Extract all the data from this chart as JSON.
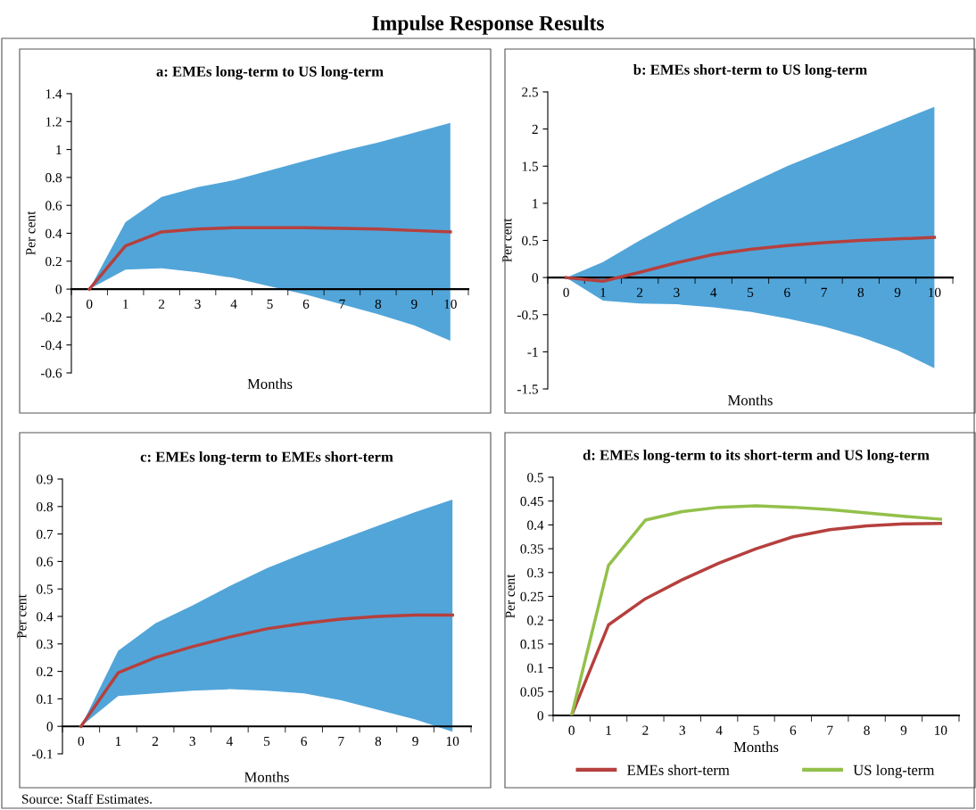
{
  "chart_data": [
    {
      "type": "line",
      "title": "a: EMEs long-term to US long-term",
      "xlabel": "Months",
      "ylabel": "Per cent",
      "annotations": [
        "Impulse Response Results"
      ],
      "categories": [
        "0",
        "1",
        "2",
        "3",
        "4",
        "5",
        "6",
        "7",
        "8",
        "9",
        "10"
      ],
      "series": [
        {
          "color": "#b5403e",
          "values": [
            0,
            0.31,
            0.41,
            0.43,
            0.44,
            0.44,
            0.44,
            0.435,
            0.43,
            0.42,
            0.41
          ],
          "lower": [
            0,
            0.14,
            0.15,
            0.12,
            0.08,
            0.02,
            -0.04,
            -0.11,
            -0.18,
            -0.26,
            -0.37
          ],
          "upper": [
            0,
            0.48,
            0.66,
            0.73,
            0.78,
            0.85,
            0.92,
            0.99,
            1.05,
            1.12,
            1.19
          ]
        }
      ],
      "ylim": [
        -0.6,
        1.4
      ],
      "yticks": [
        -0.6,
        -0.4,
        -0.2,
        0,
        0.2,
        0.4,
        0.6,
        0.8,
        1,
        1.2,
        1.4
      ],
      "grid": false,
      "legend": false
    },
    {
      "type": "line",
      "title": "b: EMEs short-term to US long-term",
      "xlabel": "Months",
      "ylabel": "Per cent",
      "categories": [
        "0",
        "1",
        "2",
        "3",
        "4",
        "5",
        "6",
        "7",
        "8",
        "9",
        "10"
      ],
      "series": [
        {
          "color": "#b5403e",
          "values": [
            0,
            -0.05,
            0.07,
            0.2,
            0.31,
            0.38,
            0.43,
            0.47,
            0.5,
            0.52,
            0.54
          ],
          "lower": [
            0,
            -0.31,
            -0.35,
            -0.36,
            -0.4,
            -0.46,
            -0.55,
            -0.66,
            -0.8,
            -0.98,
            -1.22
          ],
          "upper": [
            0,
            0.21,
            0.5,
            0.77,
            1.03,
            1.27,
            1.5,
            1.7,
            1.9,
            2.1,
            2.3
          ]
        }
      ],
      "ylim": [
        -1.5,
        2.5
      ],
      "yticks": [
        -1.5,
        -1,
        -0.5,
        0,
        0.5,
        1,
        1.5,
        2,
        2.5
      ],
      "grid": false,
      "legend": false
    },
    {
      "type": "line",
      "title": "c: EMEs long-term to EMEs short-term",
      "xlabel": "Months",
      "ylabel": "Per cent",
      "annotations": [
        "Source: Staff Estimates."
      ],
      "categories": [
        "0",
        "1",
        "2",
        "3",
        "4",
        "5",
        "6",
        "7",
        "8",
        "9",
        "10"
      ],
      "series": [
        {
          "color": "#b5403e",
          "values": [
            0,
            0.195,
            0.25,
            0.29,
            0.325,
            0.355,
            0.375,
            0.39,
            0.4,
            0.405,
            0.405
          ],
          "lower": [
            0,
            0.11,
            0.12,
            0.13,
            0.135,
            0.13,
            0.12,
            0.095,
            0.06,
            0.025,
            -0.02
          ],
          "upper": [
            0,
            0.275,
            0.375,
            0.44,
            0.51,
            0.575,
            0.63,
            0.68,
            0.73,
            0.78,
            0.825
          ]
        }
      ],
      "ylim": [
        -0.1,
        0.9
      ],
      "yticks": [
        -0.1,
        0,
        0.1,
        0.2,
        0.3,
        0.4,
        0.5,
        0.6,
        0.7,
        0.8,
        0.9
      ],
      "grid": false,
      "legend": false
    },
    {
      "type": "line",
      "title": "d: EMEs long-term to its short-term and US long-term",
      "xlabel": "Months",
      "ylabel": "Per cent",
      "categories": [
        "0",
        "1",
        "2",
        "3",
        "4",
        "5",
        "6",
        "7",
        "8",
        "9",
        "10"
      ],
      "series": [
        {
          "name": "EMEs short-term",
          "color": "#b5403e",
          "values": [
            0,
            0.19,
            0.245,
            0.285,
            0.32,
            0.35,
            0.375,
            0.39,
            0.398,
            0.402,
            0.403
          ]
        },
        {
          "name": "US long-term",
          "color": "#93c04b",
          "values": [
            0,
            0.315,
            0.41,
            0.428,
            0.437,
            0.44,
            0.437,
            0.432,
            0.425,
            0.418,
            0.412
          ]
        }
      ],
      "ylim": [
        0,
        0.5
      ],
      "yticks": [
        0,
        0.05,
        0.1,
        0.15,
        0.2,
        0.25,
        0.3,
        0.35,
        0.4,
        0.45,
        0.5
      ],
      "grid": false,
      "legend": "bottom"
    }
  ]
}
